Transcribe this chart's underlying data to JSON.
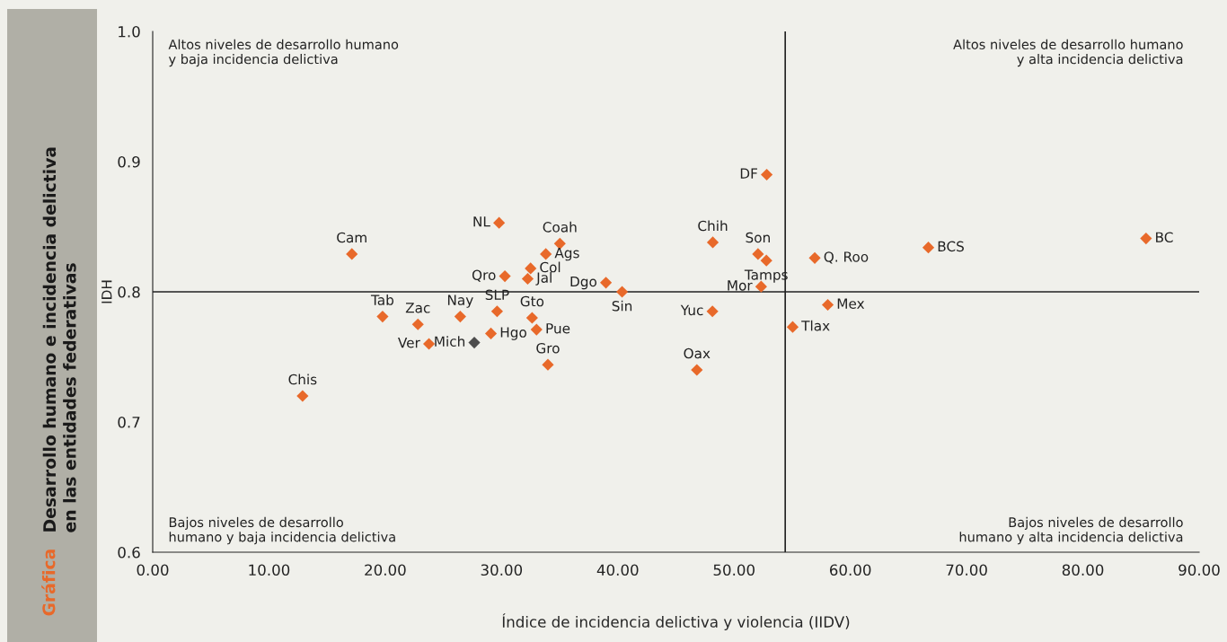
{
  "chart_data": {
    "type": "scatter",
    "title": "Desarrollo humano e incidencia delictiva\nen las entidades federativas",
    "subtitle": "Gráfica",
    "xlabel": "Índice de incidencia delictiva y violencia (IIDV)",
    "ylabel": "IDH",
    "x": [
      17.13,
      29.79,
      35.02,
      33.81,
      32.5,
      30.29,
      32.25,
      38.98,
      40.37,
      19.77,
      22.81,
      26.45,
      29.62,
      32.63,
      33.01,
      29.09,
      27.66,
      23.76,
      33.99,
      12.89,
      52.81,
      48.17,
      52.06,
      52.78,
      52.33,
      56.94,
      66.71,
      85.43,
      48.14,
      58.06,
      55.04,
      46.8
    ],
    "values": [
      0.829,
      0.853,
      0.837,
      0.829,
      0.818,
      0.812,
      0.81,
      0.807,
      0.8,
      0.781,
      0.775,
      0.781,
      0.785,
      0.78,
      0.771,
      0.768,
      0.761,
      0.76,
      0.744,
      0.72,
      0.89,
      0.838,
      0.829,
      0.824,
      0.804,
      0.826,
      0.834,
      0.841,
      0.785,
      0.79,
      0.773,
      0.74
    ],
    "colors": [
      "#e8692a",
      "#e8692a",
      "#e8692a",
      "#e8692a",
      "#e8692a",
      "#e8692a",
      "#e8692a",
      "#e8692a",
      "#e8692a",
      "#e8692a",
      "#e8692a",
      "#e8692a",
      "#e8692a",
      "#e8692a",
      "#e8692a",
      "#e8692a",
      "#4d4d4d",
      "#e8692a",
      "#e8692a",
      "#e8692a",
      "#e8692a",
      "#e8692a",
      "#e8692a",
      "#e8692a",
      "#e8692a",
      "#e8692a",
      "#e8692a",
      "#e8692a",
      "#e8692a",
      "#e8692a",
      "#e8692a",
      "#e8692a"
    ],
    "marker": "diamond",
    "xlim": [
      0,
      90
    ],
    "xticks": [
      {
        "value": 0,
        "label": "0.00"
      },
      {
        "value": 10,
        "label": "10.00"
      },
      {
        "value": 20,
        "label": "20.00"
      },
      {
        "value": 30,
        "label": "30.00"
      },
      {
        "value": 40,
        "label": "40.00"
      },
      {
        "value": 50,
        "label": "50.00"
      },
      {
        "value": 60,
        "label": "60.00"
      },
      {
        "value": 70,
        "label": "70.00"
      },
      {
        "value": 80,
        "label": "80.00"
      },
      {
        "value": 90,
        "label": "90.00"
      }
    ],
    "ylim": [
      0.6,
      1.0
    ],
    "yticks": [
      0.6,
      0.7,
      0.8,
      0.9,
      {
        "value": 1.0,
        "label": "1.0"
      }
    ],
    "grid": false,
    "ref_lines": [
      {
        "axis": "y",
        "value": 0.8,
        "color": "#222222"
      },
      {
        "axis": "x",
        "value": 54.4,
        "color": "#222222"
      }
    ],
    "annotations": [
      "Altos niveles de desarrollo humano\ny baja incidencia delictiva",
      "Altos niveles de desarrollo humano\ny alta incidencia delictiva",
      "Bajos niveles de desarrollo\nhumano y baja incidencia delictiva",
      "Bajos niveles de desarrollo\nhumano y alta incidencia delictiva",
      {
        "text": "Cam",
        "x": 17.13,
        "y": 0.829
      },
      {
        "text": "NL",
        "x": 29.79,
        "y": 0.853
      },
      {
        "text": "Coah",
        "x": 35.02,
        "y": 0.837
      },
      {
        "text": "Ags",
        "x": 33.81,
        "y": 0.829
      },
      {
        "text": "Col",
        "x": 32.5,
        "y": 0.818
      },
      {
        "text": "Qro",
        "x": 30.29,
        "y": 0.812
      },
      {
        "text": "Jal",
        "x": 32.25,
        "y": 0.81
      },
      {
        "text": "Dgo",
        "x": 38.98,
        "y": 0.807
      },
      {
        "text": "Sin",
        "x": 40.37,
        "y": 0.8
      },
      {
        "text": "Tab",
        "x": 19.77,
        "y": 0.781
      },
      {
        "text": "Zac",
        "x": 22.81,
        "y": 0.775
      },
      {
        "text": "Nay",
        "x": 26.45,
        "y": 0.781
      },
      {
        "text": "SLP",
        "x": 29.62,
        "y": 0.785
      },
      {
        "text": "Gto",
        "x": 32.63,
        "y": 0.78
      },
      {
        "text": "Pue",
        "x": 33.01,
        "y": 0.771
      },
      {
        "text": "Hgo",
        "x": 29.09,
        "y": 0.768
      },
      {
        "text": "Mich",
        "x": 27.66,
        "y": 0.761
      },
      {
        "text": "Ver",
        "x": 23.76,
        "y": 0.76
      },
      {
        "text": "Gro",
        "x": 33.99,
        "y": 0.744
      },
      {
        "text": "Chis",
        "x": 12.89,
        "y": 0.72
      },
      {
        "text": "DF",
        "x": 52.81,
        "y": 0.89
      },
      {
        "text": "Chih",
        "x": 48.17,
        "y": 0.838
      },
      {
        "text": "Son",
        "x": 52.06,
        "y": 0.829
      },
      {
        "text": "Tamps",
        "x": 52.78,
        "y": 0.824
      },
      {
        "text": "Mor",
        "x": 52.33,
        "y": 0.804
      },
      {
        "text": "Q. Roo",
        "x": 56.94,
        "y": 0.826
      },
      {
        "text": "BCS",
        "x": 66.71,
        "y": 0.834
      },
      {
        "text": "BC",
        "x": 85.43,
        "y": 0.841
      },
      {
        "text": "Yuc",
        "x": 48.14,
        "y": 0.785
      },
      {
        "text": "Mex",
        "x": 58.06,
        "y": 0.79
      },
      {
        "text": "Tlax",
        "x": 55.04,
        "y": 0.773
      },
      {
        "text": "Oax",
        "x": 46.8,
        "y": 0.74
      }
    ]
  }
}
